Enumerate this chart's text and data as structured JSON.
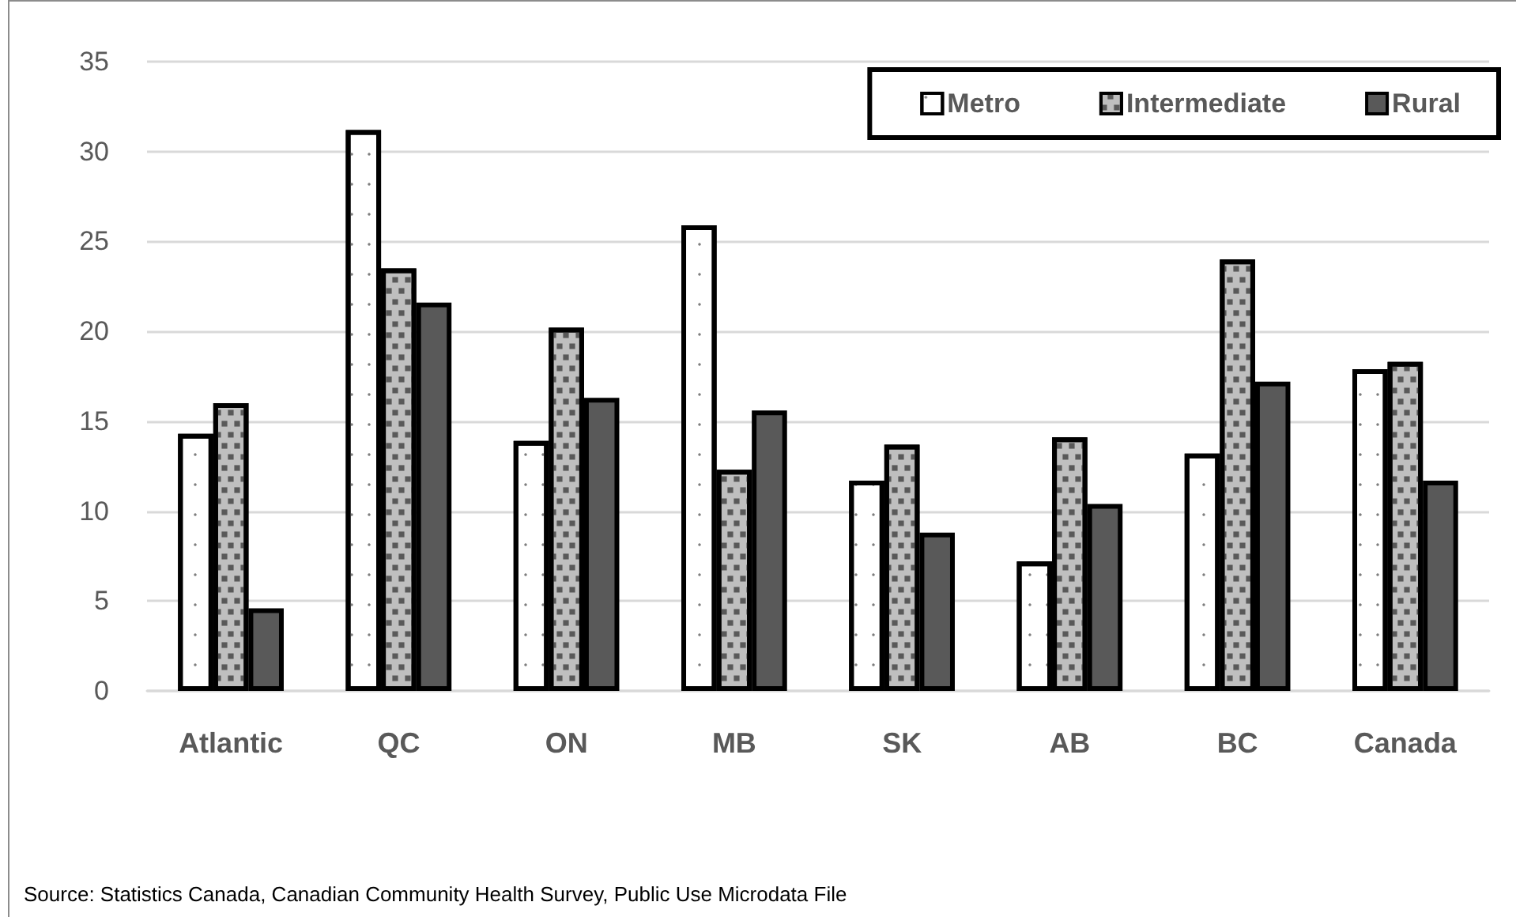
{
  "chart_data": {
    "type": "bar",
    "categories": [
      "Atlantic",
      "QC",
      "ON",
      "MB",
      "SK",
      "AB",
      "BC",
      "Canada"
    ],
    "series": [
      {
        "name": "Metro",
        "color": "#ffffff",
        "values": [
          14.3,
          31.2,
          13.9,
          25.9,
          11.7,
          7.2,
          13.2,
          17.9
        ]
      },
      {
        "name": "Intermediate",
        "color": "#bfbfbf",
        "values": [
          16.0,
          23.5,
          20.2,
          12.3,
          13.7,
          14.1,
          24.0,
          18.3
        ]
      },
      {
        "name": "Rural",
        "color": "#595959",
        "values": [
          4.6,
          21.6,
          16.3,
          15.6,
          8.8,
          10.4,
          17.2,
          11.7
        ]
      }
    ],
    "ylim": [
      0,
      35
    ],
    "yticks": [
      0,
      5,
      10,
      15,
      20,
      25,
      30,
      35
    ],
    "grid": "y",
    "legend": "top right",
    "annotations": [
      "Source: Statistics Canada, Canadian Community Health Survey, Public Use Microdata File"
    ]
  }
}
